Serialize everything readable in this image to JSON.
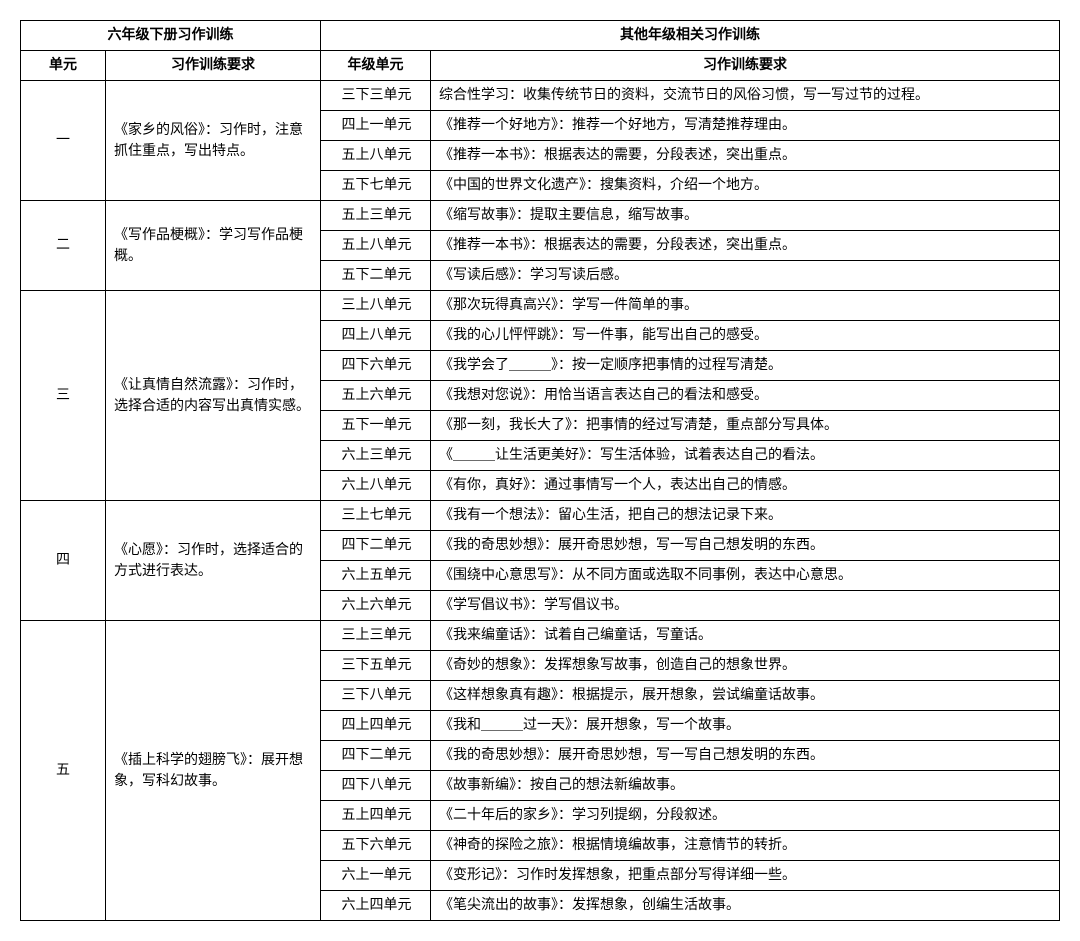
{
  "headers": {
    "left_top": "六年级下册习作训练",
    "right_top": "其他年级相关习作训练",
    "unit": "单元",
    "req": "习作训练要求",
    "grade_unit": "年级单元",
    "req2": "习作训练要求"
  },
  "sections": [
    {
      "unit": "一",
      "req": "《家乡的风俗》：习作时，注意抓住重点，写出特点。",
      "rows": [
        {
          "g": "三下三单元",
          "r": "综合性学习：收集传统节日的资料，交流节日的风俗习惯，写一写过节的过程。"
        },
        {
          "g": "四上一单元",
          "r": "《推荐一个好地方》：推荐一个好地方，写清楚推荐理由。"
        },
        {
          "g": "五上八单元",
          "r": "《推荐一本书》：根据表达的需要，分段表述，突出重点。"
        },
        {
          "g": "五下七单元",
          "r": "《中国的世界文化遗产》：搜集资料，介绍一个地方。"
        }
      ]
    },
    {
      "unit": "二",
      "req": "《写作品梗概》：学习写作品梗概。",
      "rows": [
        {
          "g": "五上三单元",
          "r": "《缩写故事》：提取主要信息，缩写故事。"
        },
        {
          "g": "五上八单元",
          "r": "《推荐一本书》：根据表达的需要，分段表述，突出重点。"
        },
        {
          "g": "五下二单元",
          "r": "《写读后感》：学习写读后感。"
        }
      ]
    },
    {
      "unit": "三",
      "req": "《让真情自然流露》：习作时，选择合适的内容写出真情实感。",
      "rows": [
        {
          "g": "三上八单元",
          "r": "《那次玩得真高兴》：学写一件简单的事。"
        },
        {
          "g": "四上八单元",
          "r": "《我的心儿怦怦跳》：写一件事，能写出自己的感受。"
        },
        {
          "g": "四下六单元",
          "r": "《我学会了＿＿＿》：按一定顺序把事情的过程写清楚。"
        },
        {
          "g": "五上六单元",
          "r": "《我想对您说》：用恰当语言表达自己的看法和感受。"
        },
        {
          "g": "五下一单元",
          "r": "《那一刻，我长大了》：把事情的经过写清楚，重点部分写具体。"
        },
        {
          "g": "六上三单元",
          "r": "《＿＿＿让生活更美好》：写生活体验，试着表达自己的看法。"
        },
        {
          "g": "六上八单元",
          "r": "《有你，真好》：通过事情写一个人，表达出自己的情感。"
        }
      ]
    },
    {
      "unit": "四",
      "req": "《心愿》：习作时，选择适合的方式进行表达。",
      "rows": [
        {
          "g": "三上七单元",
          "r": "《我有一个想法》：留心生活，把自己的想法记录下来。"
        },
        {
          "g": "四下二单元",
          "r": "《我的奇思妙想》：展开奇思妙想，写一写自己想发明的东西。"
        },
        {
          "g": "六上五单元",
          "r": "《围绕中心意思写》：从不同方面或选取不同事例，表达中心意思。"
        },
        {
          "g": "六上六单元",
          "r": "《学写倡议书》：学写倡议书。"
        }
      ]
    },
    {
      "unit": "五",
      "req": "《插上科学的翅膀飞》：展开想象，写科幻故事。",
      "rows": [
        {
          "g": "三上三单元",
          "r": "《我来编童话》：试着自己编童话，写童话。"
        },
        {
          "g": "三下五单元",
          "r": "《奇妙的想象》：发挥想象写故事，创造自己的想象世界。"
        },
        {
          "g": "三下八单元",
          "r": "《这样想象真有趣》：根据提示，展开想象，尝试编童话故事。"
        },
        {
          "g": "四上四单元",
          "r": "《我和＿＿＿过一天》：展开想象，写一个故事。"
        },
        {
          "g": "四下二单元",
          "r": "《我的奇思妙想》：展开奇思妙想，写一写自己想发明的东西。"
        },
        {
          "g": "四下八单元",
          "r": "《故事新编》：按自己的想法新编故事。"
        },
        {
          "g": "五上四单元",
          "r": "《二十年后的家乡》：学习列提纲，分段叙述。"
        },
        {
          "g": "五下六单元",
          "r": "《神奇的探险之旅》：根据情境编故事，注意情节的转折。"
        },
        {
          "g": "六上一单元",
          "r": "《变形记》：习作时发挥想象，把重点部分写得详细一些。"
        },
        {
          "g": "六上四单元",
          "r": "《笔尖流出的故事》：发挥想象，创编生活故事。"
        }
      ]
    }
  ]
}
